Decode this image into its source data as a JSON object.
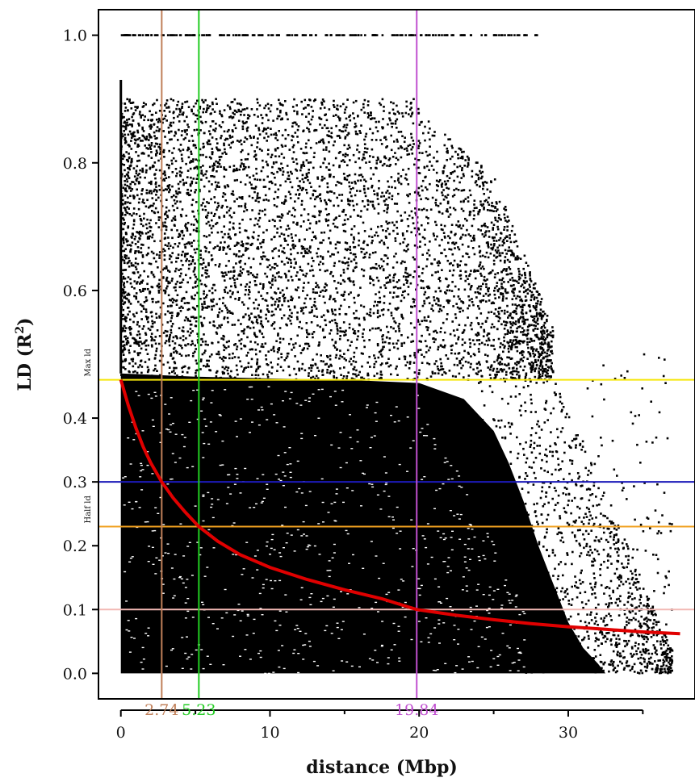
{
  "chart_data": {
    "type": "scatter",
    "title": "",
    "xlabel": "distance (Mbp)",
    "ylabel_main": "LD (R",
    "ylabel_sup": "2",
    "ylabel_close": ")",
    "xlim": [
      -1.5,
      38.5
    ],
    "ylim": [
      -0.04,
      1.04
    ],
    "x_ticks": [
      {
        "value": 0,
        "label": "0"
      },
      {
        "value": 10,
        "label": "10"
      },
      {
        "value": 20,
        "label": "20"
      },
      {
        "value": 30,
        "label": "30"
      }
    ],
    "y_ticks": [
      {
        "value": 0.0,
        "label": "0.0"
      },
      {
        "value": 0.1,
        "label": "0.1"
      },
      {
        "value": 0.2,
        "label": "0.2"
      },
      {
        "value": 0.3,
        "label": "0.3"
      },
      {
        "value": 0.4,
        "label": "0.4"
      },
      {
        "value": 0.6,
        "label": "0.6"
      },
      {
        "value": 0.8,
        "label": "0.8"
      },
      {
        "value": 1.0,
        "label": "1.0"
      }
    ],
    "scatter": {
      "color": "#000000",
      "density_note": "solid black for x<=20, thinning to sparse dots by x~37",
      "max_x": 37
    },
    "decay_curve": {
      "color": "#e00000",
      "points": [
        [
          0,
          0.46
        ],
        [
          0.5,
          0.42
        ],
        [
          1,
          0.385
        ],
        [
          1.5,
          0.355
        ],
        [
          2,
          0.33
        ],
        [
          2.74,
          0.3
        ],
        [
          3.5,
          0.275
        ],
        [
          4.3,
          0.253
        ],
        [
          5.23,
          0.23
        ],
        [
          6.5,
          0.207
        ],
        [
          8,
          0.186
        ],
        [
          10,
          0.166
        ],
        [
          12.5,
          0.147
        ],
        [
          15,
          0.131
        ],
        [
          17.5,
          0.117
        ],
        [
          19.84,
          0.1
        ],
        [
          22.5,
          0.091
        ],
        [
          25,
          0.084
        ],
        [
          27.5,
          0.078
        ],
        [
          30,
          0.073
        ],
        [
          32.5,
          0.069
        ],
        [
          35,
          0.065
        ],
        [
          37.5,
          0.062
        ]
      ]
    },
    "hlines": [
      {
        "name": "max-ld",
        "y": 0.46,
        "color": "#f5e60a",
        "label": "Max ld"
      },
      {
        "name": "half-ld-line",
        "y": 0.3,
        "color": "#1c1ab8",
        "label": ""
      },
      {
        "name": "half-ld",
        "y": 0.23,
        "color": "#f0a020",
        "label": "Half ld"
      },
      {
        "name": "ld-0-1",
        "y": 0.1,
        "color": "#f2b8b4",
        "label": ""
      }
    ],
    "vlines": [
      {
        "name": "x-2-74",
        "x": 2.74,
        "color": "#c0805a",
        "label": "2.74"
      },
      {
        "name": "x-5-23",
        "x": 5.23,
        "color": "#22cc22",
        "label": "5.23"
      },
      {
        "name": "x-19-84",
        "x": 19.84,
        "color": "#c050d0",
        "label": "19.84"
      }
    ]
  }
}
